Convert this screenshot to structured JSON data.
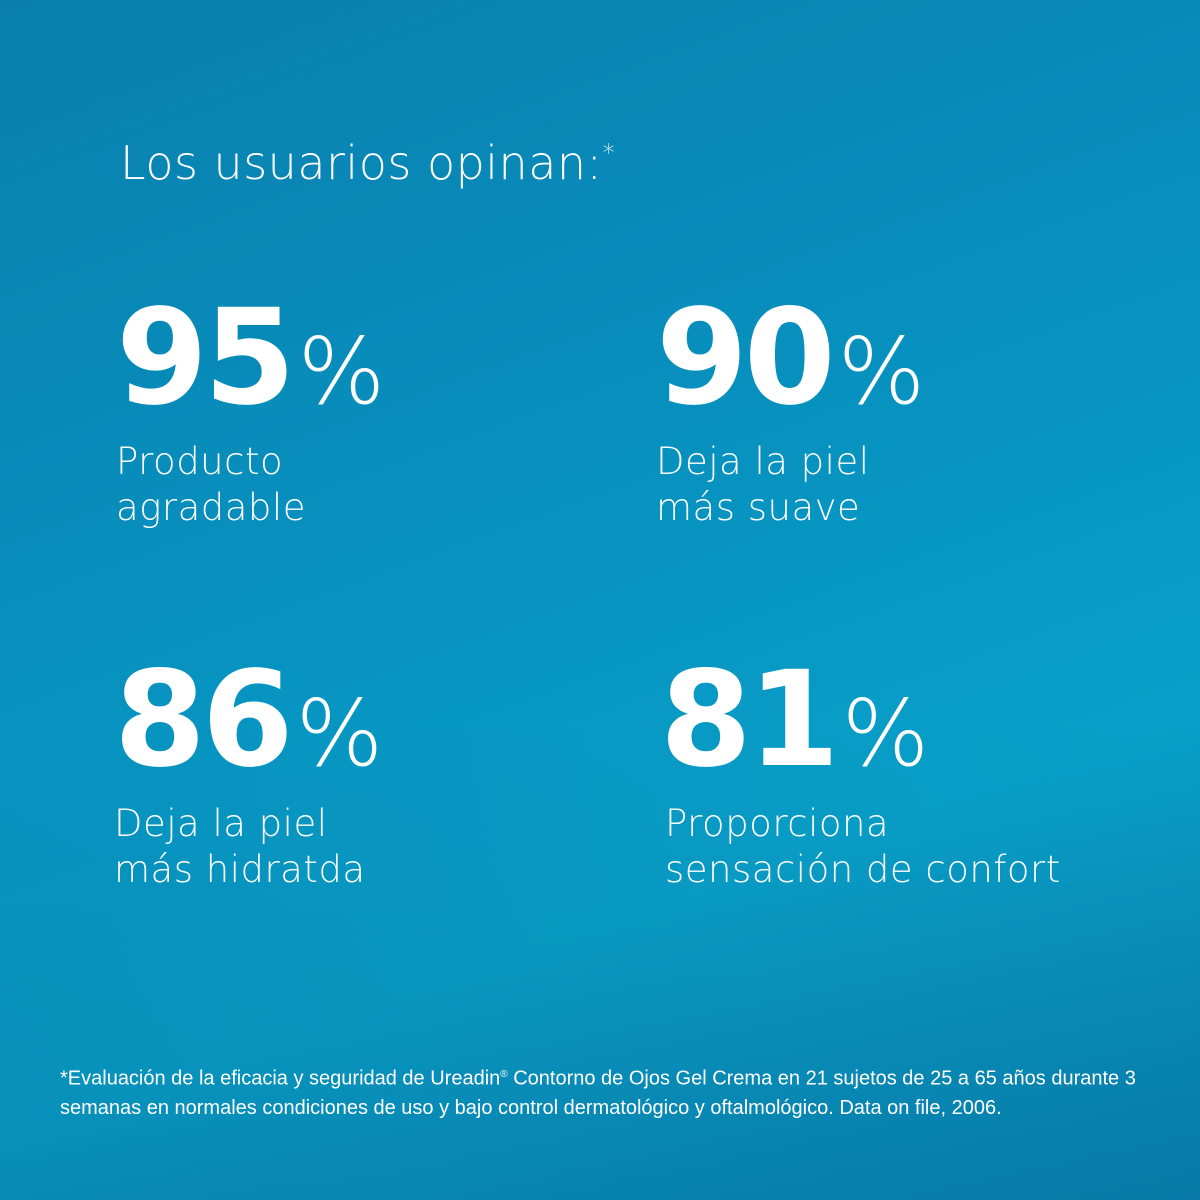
{
  "colors": {
    "background_start": "#0a7fae",
    "background_end": "#08a0c8",
    "text": "#ffffff"
  },
  "title": {
    "text": "Los usuarios opinan:",
    "marker": "*"
  },
  "stats": [
    {
      "value": "95",
      "unit": "%",
      "line1": "Producto",
      "line2": "agradable"
    },
    {
      "value": "90",
      "unit": "%",
      "line1": "Deja la piel",
      "line2": "más suave"
    },
    {
      "value": "86",
      "unit": "%",
      "line1": "Deja la piel",
      "line2": "más hidratda"
    },
    {
      "value": "81",
      "unit": "%",
      "line1": "Proporciona",
      "line2": "sensación de confort"
    }
  ],
  "footnote": {
    "before": "*Evaluación de la eficacia y seguridad de Ureadin",
    "reg": "®",
    "after": " Contorno de Ojos Gel Crema en 21 sujetos de 25 a 65 años durante 3 semanas en normales condiciones de uso y bajo control dermatológico y oftalmológico. Data on file, 2006."
  }
}
